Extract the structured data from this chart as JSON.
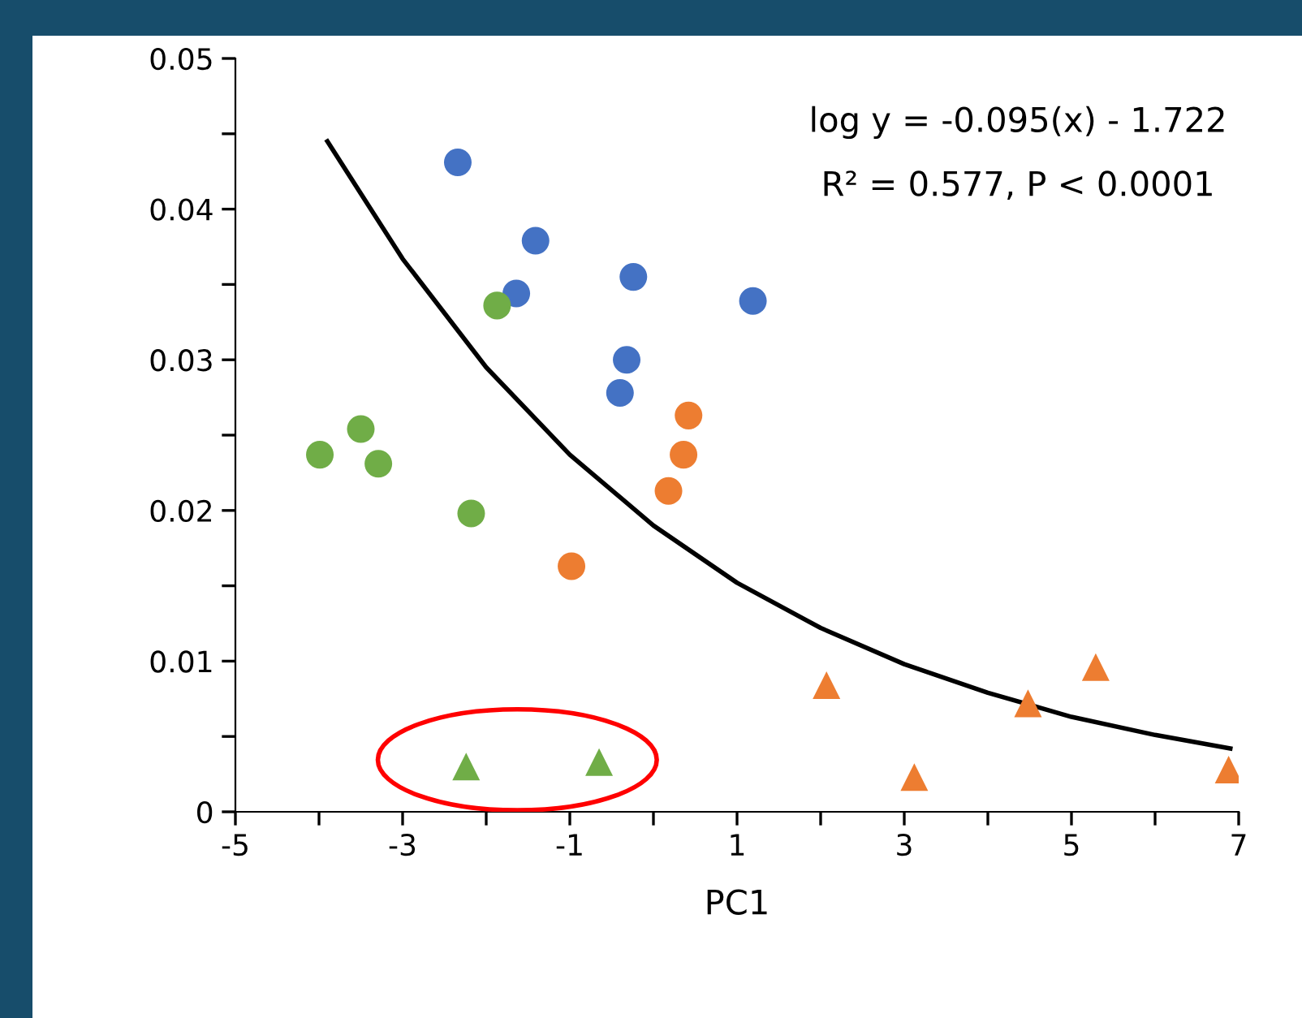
{
  "chart_data": {
    "type": "scatter",
    "xlabel": "PC1",
    "annotations": [
      "log y = -0.095(x) - 1.722",
      "R² = 0.577, P < 0.0001"
    ],
    "xlim": [
      -5,
      7
    ],
    "xticks": [
      -5,
      {
        "value": -4,
        "label": null
      },
      -3,
      {
        "value": -2,
        "label": null
      },
      -1,
      {
        "value": 0,
        "label": null
      },
      1,
      {
        "value": 2,
        "label": null
      },
      3,
      {
        "value": 4,
        "label": null
      },
      5,
      {
        "value": 6,
        "label": null
      },
      7
    ],
    "ylim": [
      0,
      0.05
    ],
    "yticks": [
      {
        "value": 0,
        "label": "0"
      },
      {
        "value": 0.005,
        "label": null
      },
      0.01,
      {
        "value": 0.015,
        "label": null
      },
      0.02,
      {
        "value": 0.025,
        "label": null
      },
      0.03,
      {
        "value": 0.035,
        "label": null
      },
      0.04,
      {
        "value": 0.045,
        "label": null
      },
      0.05
    ],
    "grid": false,
    "legend": false,
    "series": [
      {
        "color": "#4472c4",
        "marker": "circle",
        "x": [
          -2.34,
          -1.41,
          -1.64,
          -0.24,
          -0.32,
          -0.4,
          1.19
        ],
        "values": [
          0.0431,
          0.0379,
          0.0344,
          0.0355,
          0.03,
          0.0278,
          0.0339
        ]
      },
      {
        "color": "#ed7d31",
        "marker": "circle",
        "x": [
          0.42,
          0.36,
          0.18,
          -0.98
        ],
        "values": [
          0.0263,
          0.0237,
          0.0213,
          0.0163
        ]
      },
      {
        "color": "#70ad47",
        "marker": "circle",
        "x": [
          -1.87,
          -3.99,
          -3.5,
          -3.29,
          -2.18
        ],
        "values": [
          0.0336,
          0.0237,
          0.0254,
          0.0231,
          0.0198
        ]
      },
      {
        "color": "#70ad47",
        "marker": "triangle",
        "x": [
          -2.24,
          -0.65
        ],
        "values": [
          0.003,
          0.0033
        ]
      },
      {
        "color": "#ed7d31",
        "marker": "triangle",
        "x": [
          2.07,
          3.12,
          4.48,
          5.29,
          6.88
        ],
        "values": [
          0.0084,
          0.0023,
          0.0072,
          0.0096,
          0.0028
        ]
      },
      {
        "type": "line",
        "color": "#000000",
        "marker": "none",
        "line_style": "solid",
        "x": [
          -3.9,
          -3,
          -2,
          -1,
          0,
          1,
          2,
          3,
          4,
          5,
          6,
          6.9
        ],
        "values": [
          0.0445,
          0.0367,
          0.0295,
          0.0237,
          0.019,
          0.0152,
          0.0122,
          0.0098,
          0.0079,
          0.0063,
          0.0051,
          0.0042
        ]
      }
    ]
  }
}
